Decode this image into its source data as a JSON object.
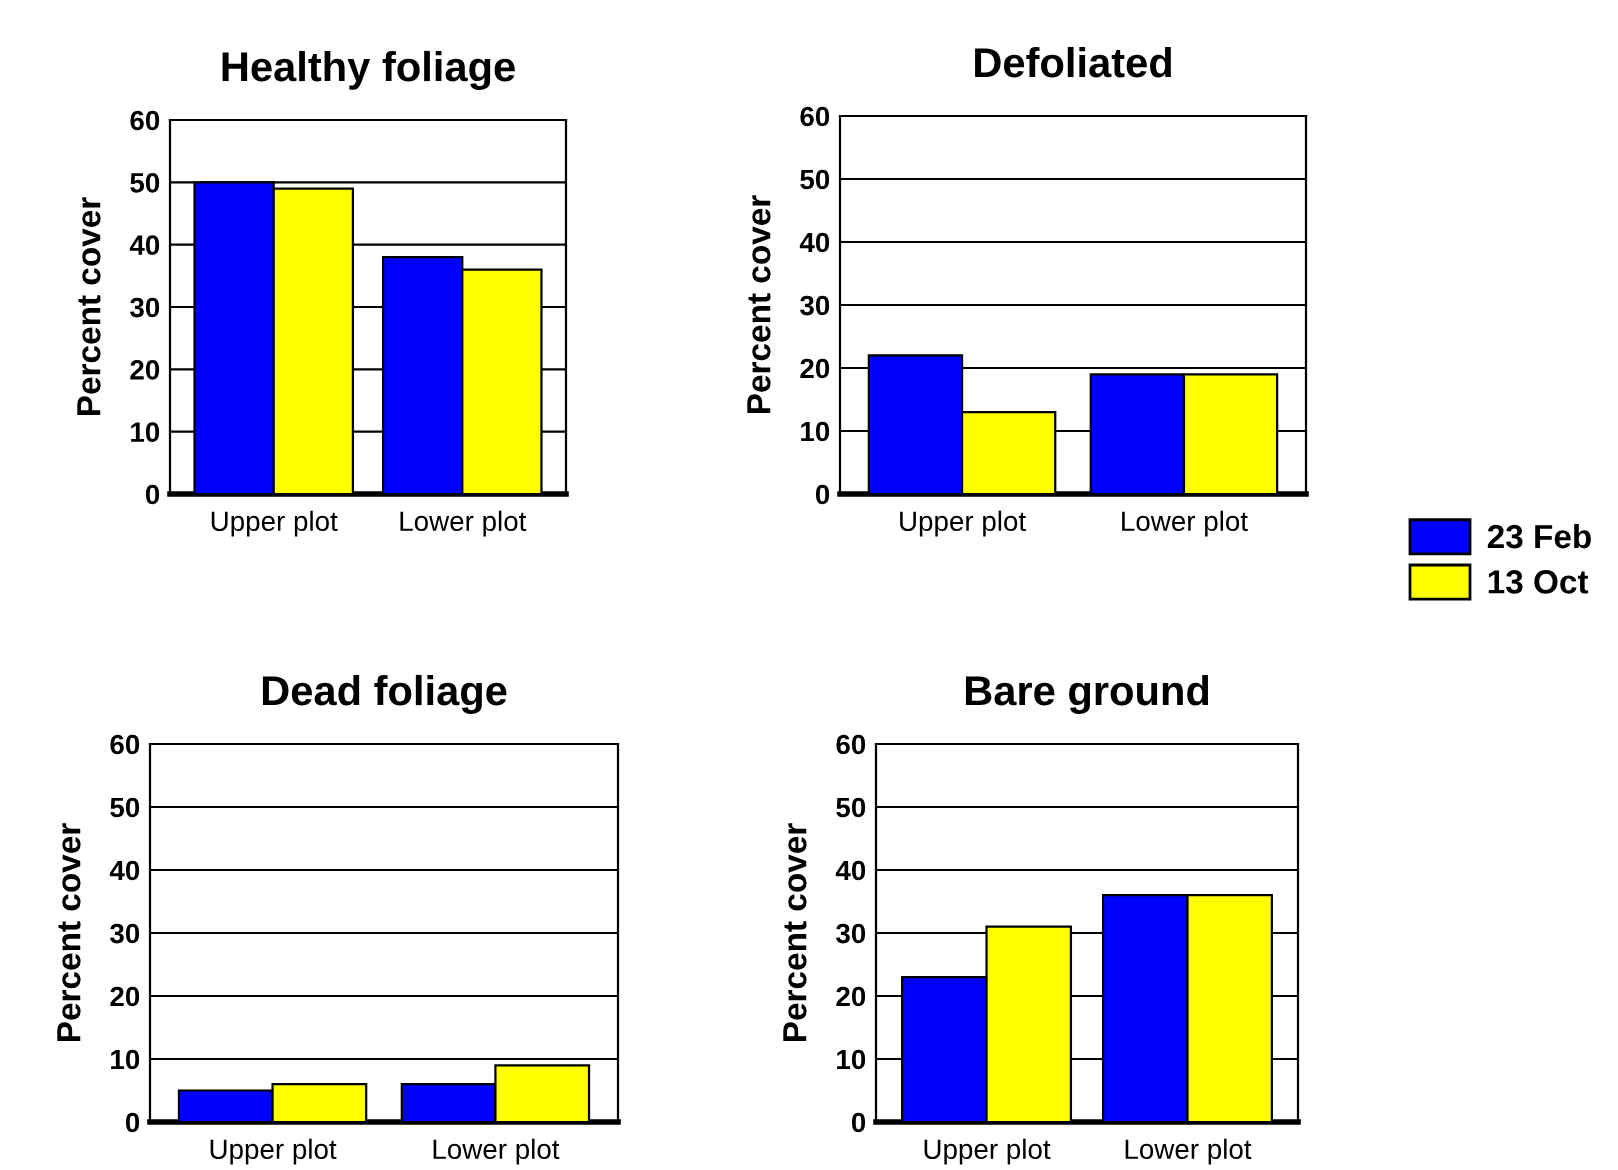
{
  "chart_data": [
    {
      "type": "bar",
      "title": "Healthy foliage",
      "ylabel": "Percent cover",
      "categories": [
        "Upper plot",
        "Lower plot"
      ],
      "series": [
        {
          "color": "#0000ff",
          "values": [
            50,
            38
          ]
        },
        {
          "color": "#ffff00",
          "values": [
            49,
            36
          ]
        }
      ],
      "ylim": [
        0,
        60
      ],
      "yticks": [
        0,
        10,
        20,
        30,
        40,
        50,
        60
      ],
      "grid": "y"
    },
    {
      "type": "bar",
      "title": "Defoliated",
      "ylabel": "Percent cover",
      "categories": [
        "Upper plot",
        "Lower plot"
      ],
      "series": [
        {
          "name": "23 Feb",
          "color": "#0000ff",
          "values": [
            22,
            19
          ]
        },
        {
          "name": "13 Oct",
          "color": "#ffff00",
          "values": [
            13,
            19
          ]
        }
      ],
      "ylim": [
        0,
        60
      ],
      "yticks": [
        0,
        10,
        20,
        30,
        40,
        50,
        60
      ],
      "grid": "y",
      "legend": "right"
    },
    {
      "type": "bar",
      "title": "Dead foliage",
      "ylabel": "Percent cover",
      "categories": [
        "Upper plot",
        "Lower plot"
      ],
      "series": [
        {
          "color": "#0000ff",
          "values": [
            5,
            6
          ]
        },
        {
          "color": "#ffff00",
          "values": [
            6,
            9
          ]
        }
      ],
      "ylim": [
        0,
        60
      ],
      "yticks": [
        0,
        10,
        20,
        30,
        40,
        50,
        60
      ],
      "grid": "y"
    },
    {
      "type": "bar",
      "title": "Bare ground",
      "ylabel": "Percent cover",
      "categories": [
        "Upper plot",
        "Lower plot"
      ],
      "series": [
        {
          "color": "#0000ff",
          "values": [
            23,
            36
          ]
        },
        {
          "color": "#ffff00",
          "values": [
            31,
            36
          ]
        }
      ],
      "ylim": [
        0,
        60
      ],
      "yticks": [
        0,
        10,
        20,
        30,
        40,
        50,
        60
      ],
      "grid": "y"
    }
  ]
}
